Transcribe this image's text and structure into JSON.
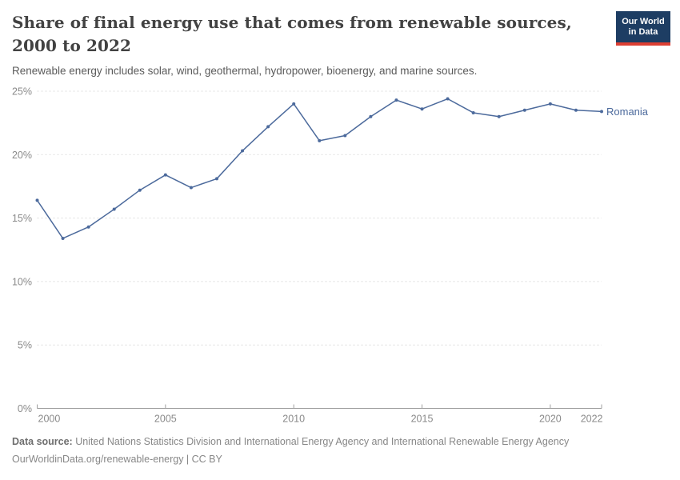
{
  "chart_data": {
    "type": "line",
    "title": "Share of final energy use that comes from renewable sources, 2000 to 2022",
    "subtitle": "Renewable energy includes solar, wind, geothermal, hydropower, bioenergy, and marine sources.",
    "x": [
      2000,
      2001,
      2002,
      2003,
      2004,
      2005,
      2006,
      2007,
      2008,
      2009,
      2010,
      2011,
      2012,
      2013,
      2014,
      2015,
      2016,
      2017,
      2018,
      2019,
      2020,
      2021,
      2022
    ],
    "series": [
      {
        "name": "Romania",
        "color": "#4C6A9C",
        "values": [
          16.4,
          13.4,
          14.3,
          15.7,
          17.2,
          18.4,
          17.4,
          18.1,
          20.3,
          22.2,
          24.0,
          21.1,
          21.5,
          23.0,
          24.3,
          23.6,
          24.4,
          23.3,
          23.0,
          23.5,
          24.0,
          23.5,
          23.4
        ]
      }
    ],
    "xlabel": "",
    "ylabel": "",
    "ylim": [
      0,
      25
    ],
    "yticks": [
      0,
      5,
      10,
      15,
      20,
      25
    ],
    "ytick_suffix": "%",
    "xticks": [
      2000,
      2005,
      2010,
      2015,
      2020,
      2022
    ],
    "grid": true,
    "grid_color": "#dcdcdc",
    "axis_color": "#a0a0a0",
    "tick_label_color": "#8a8a8a",
    "legend_position": "end-of-line"
  },
  "logo": {
    "line1": "Our World",
    "line2": "in Data",
    "background": "#1d3d63",
    "stripe": "#dc3e32"
  },
  "footer": {
    "source_label": "Data source:",
    "source_text": " United Nations Statistics Division and International Energy Agency and International Renewable Energy Agency",
    "attribution": "OurWorldinData.org/renewable-energy | CC BY"
  }
}
